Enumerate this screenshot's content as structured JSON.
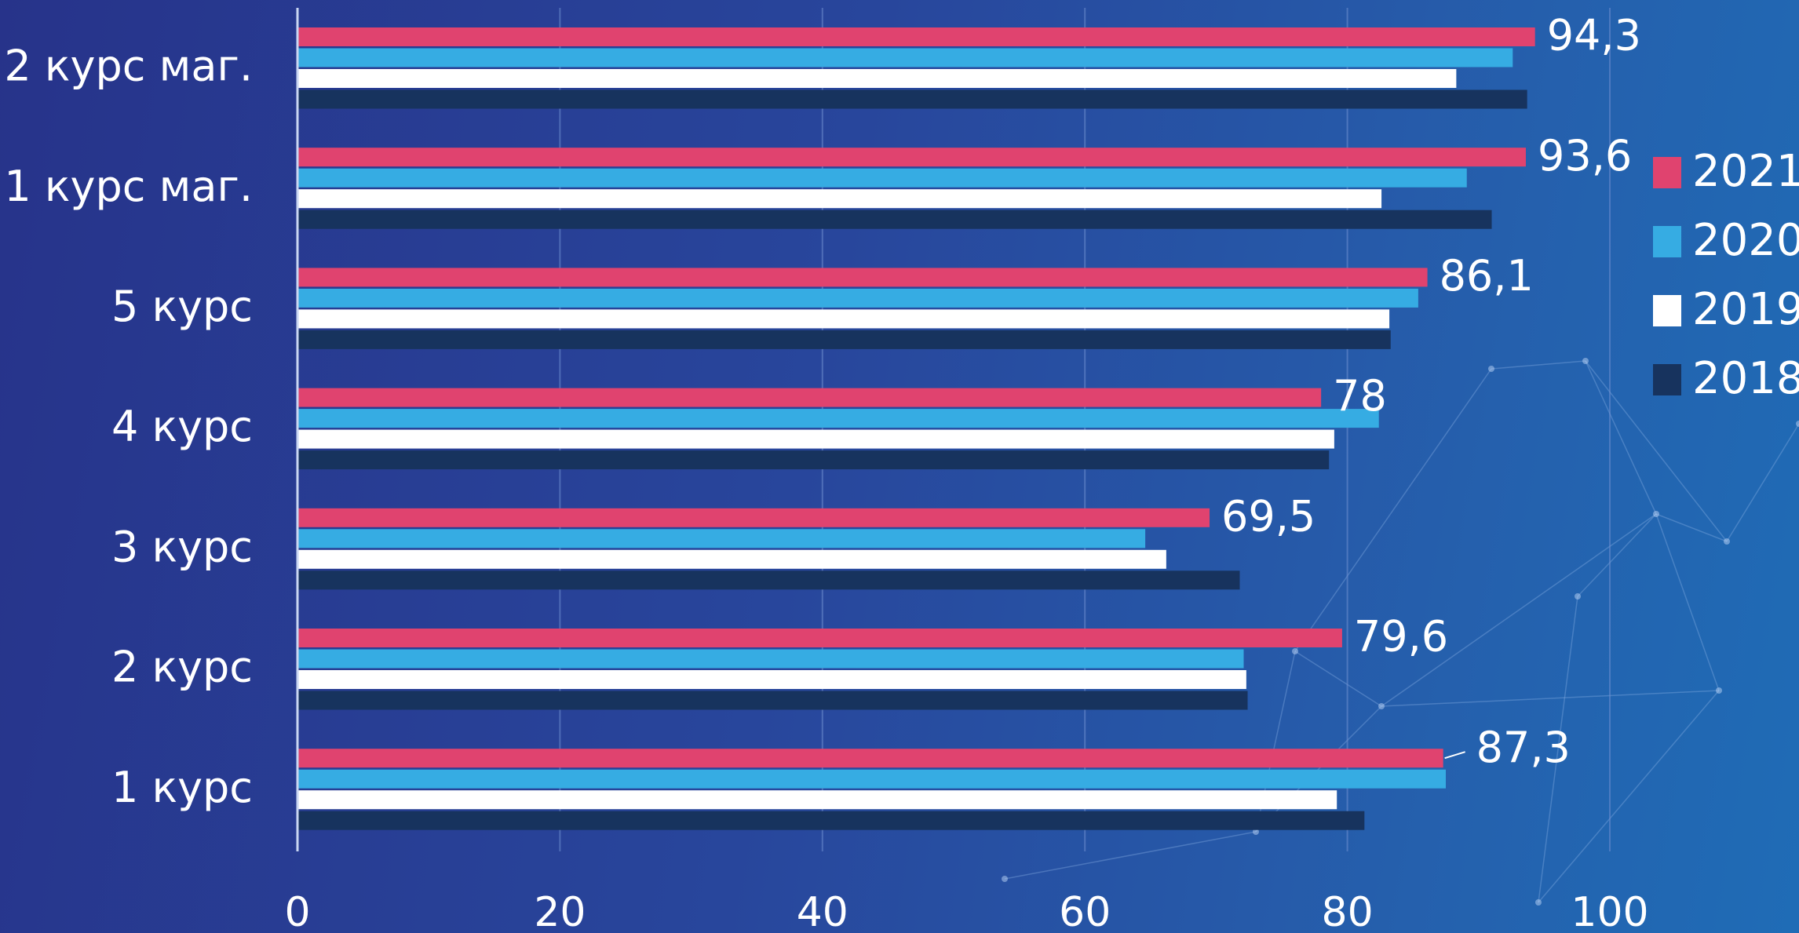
{
  "chart_data": {
    "type": "bar",
    "orientation": "horizontal",
    "categories": [
      "2 курс маг.",
      "1 курс маг.",
      "5 курс",
      "4 курс",
      "3 курс",
      "2 курс",
      "1 курс"
    ],
    "series": [
      {
        "name": "2021",
        "color": "#e0436f",
        "values": [
          94.3,
          93.6,
          86.1,
          78,
          69.5,
          79.6,
          87.3
        ]
      },
      {
        "name": "2020",
        "color": "#36ace3",
        "values": [
          92.6,
          89.1,
          85.4,
          82.4,
          64.6,
          72.1,
          87.5
        ]
      },
      {
        "name": "2019",
        "color": "#ffffff",
        "values": [
          88.3,
          82.6,
          83.2,
          79.0,
          66.2,
          72.3,
          79.2
        ]
      },
      {
        "name": "2018",
        "color": "#17335e",
        "values": [
          93.7,
          91.0,
          83.3,
          78.6,
          71.8,
          72.4,
          81.3
        ]
      }
    ],
    "data_labels": [
      "94,3",
      "93,6",
      "86,1",
      "78",
      "69,5",
      "79,6",
      "87,3"
    ],
    "xaxis": {
      "ticks": [
        "0",
        "20",
        "40",
        "60",
        "80",
        "100"
      ],
      "xlim": [
        0,
        100
      ]
    },
    "grid": true,
    "legend": {
      "placement": "right",
      "order": [
        "2021",
        "2020",
        "2019",
        "2018"
      ]
    },
    "title": "",
    "xlabel": "",
    "ylabel": ""
  }
}
